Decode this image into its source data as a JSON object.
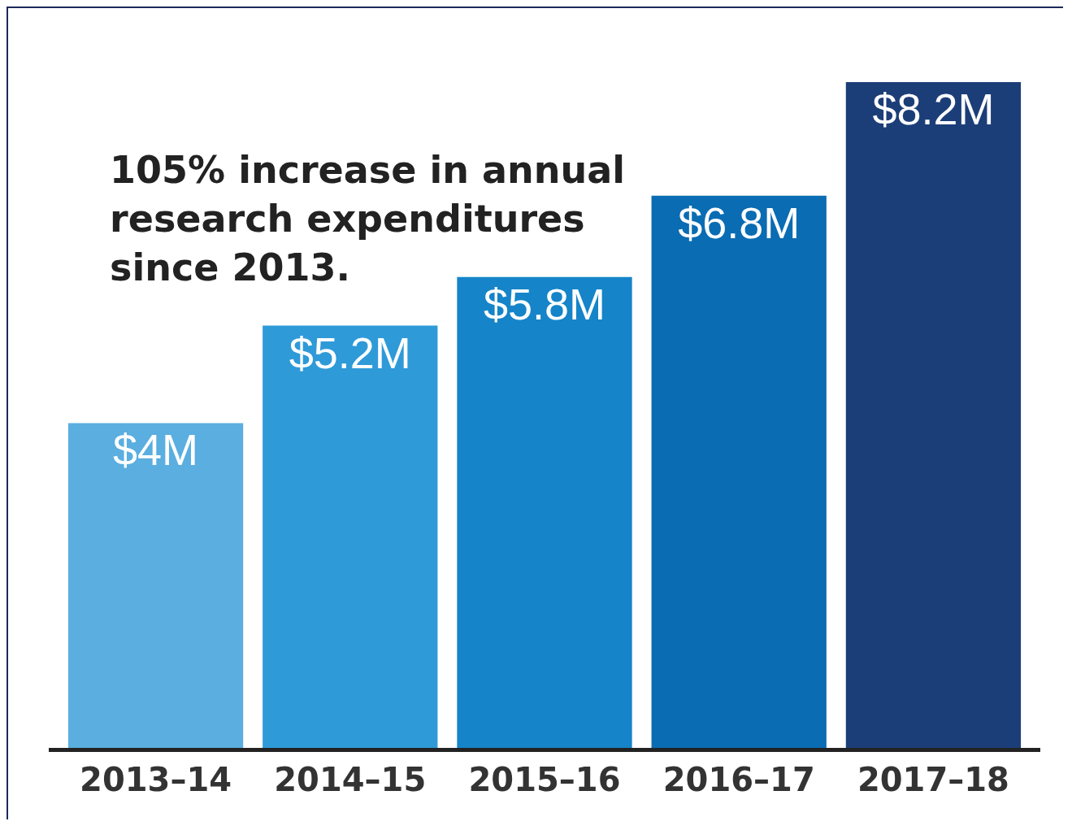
{
  "chart_data": {
    "type": "bar",
    "categories": [
      "2013–14",
      "2014–15",
      "2015–16",
      "2016–17",
      "2017–18"
    ],
    "values": [
      4,
      5.2,
      5.8,
      6.8,
      8.2
    ],
    "value_labels": [
      "$4M",
      "$5.2M",
      "$5.8M",
      "$6.8M",
      "$8.2M"
    ],
    "colors": [
      "#5aaee0",
      "#2f9ad8",
      "#1684c8",
      "#0a6cb3",
      "#1c3e78"
    ],
    "annotations": [
      "105% increase in annual research expenditures since 2013."
    ],
    "grid": false
  }
}
